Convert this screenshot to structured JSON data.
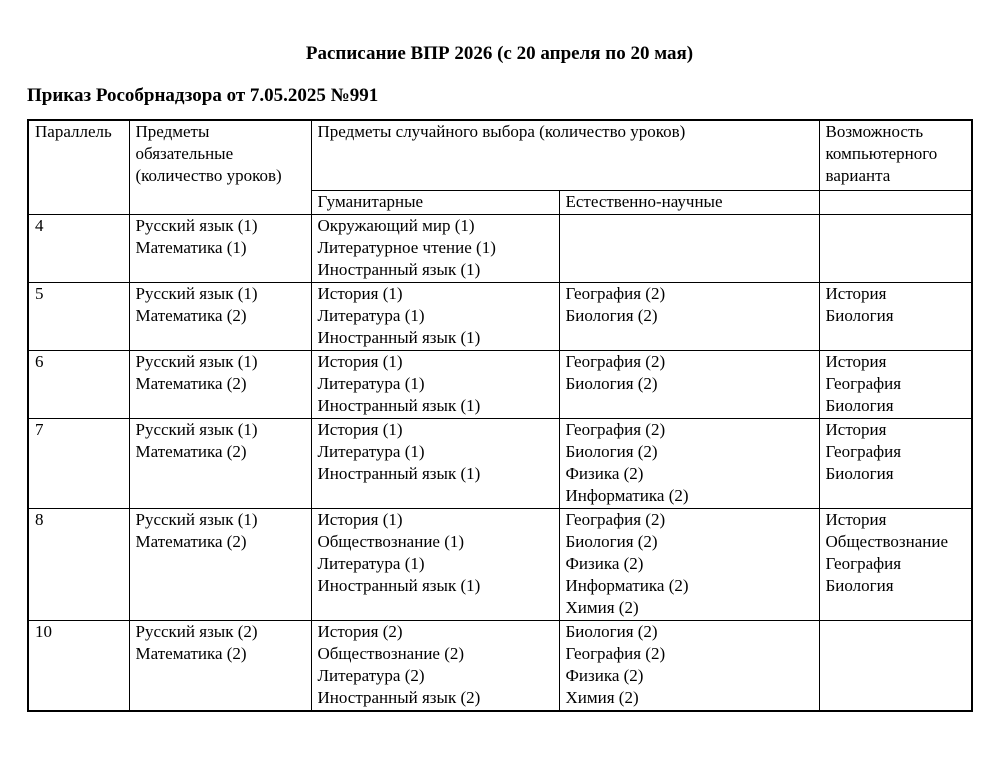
{
  "page": {
    "title": "Расписание ВПР 2026 (с 20 апреля по 20 мая)",
    "subtitle": "Приказ Рособрнадзора от 7.05.2025 №991"
  },
  "table": {
    "headers": {
      "parallel": "Параллель",
      "mandatory": "Предметы обязательные (количество уроков)",
      "random_choice": "Предметы случайного выбора (количество уроков)",
      "humanities": "Гуманитарные",
      "natural_science": "Естественно-научные",
      "computer_option": "Возможность компьютерного варианта",
      "computer_option_sub": ""
    },
    "rows": [
      {
        "parallel": "4",
        "mandatory": [
          "Русский язык (1)",
          "Математика (1)"
        ],
        "humanities": [
          "Окружающий мир (1)",
          "Литературное чтение (1)",
          "Иностранный язык (1)"
        ],
        "natural_science": [],
        "computer_option": []
      },
      {
        "parallel": "5",
        "mandatory": [
          "Русский язык (1)",
          "Математика (2)"
        ],
        "humanities": [
          "История (1)",
          "Литература (1)",
          "Иностранный язык (1)"
        ],
        "natural_science": [
          "География (2)",
          "Биология (2)"
        ],
        "computer_option": [
          "История",
          "Биология"
        ]
      },
      {
        "parallel": "6",
        "mandatory": [
          "Русский язык (1)",
          "Математика (2)"
        ],
        "humanities": [
          "История (1)",
          "Литература (1)",
          "Иностранный язык (1)"
        ],
        "natural_science": [
          "География (2)",
          "Биология (2)"
        ],
        "computer_option": [
          "История",
          "География",
          "Биология"
        ]
      },
      {
        "parallel": "7",
        "mandatory": [
          "Русский язык (1)",
          "Математика (2)"
        ],
        "humanities": [
          "История (1)",
          "Литература (1)",
          "Иностранный язык (1)"
        ],
        "natural_science": [
          "География (2)",
          "Биология (2)",
          "Физика (2)",
          "Информатика (2)"
        ],
        "computer_option": [
          "История",
          "География",
          "Биология"
        ]
      },
      {
        "parallel": "8",
        "mandatory": [
          "Русский язык (1)",
          "Математика (2)"
        ],
        "humanities": [
          "История (1)",
          "Обществознание (1)",
          "Литература (1)",
          "Иностранный язык (1)"
        ],
        "natural_science": [
          "География (2)",
          "Биология (2)",
          "Физика (2)",
          "Информатика (2)",
          "Химия (2)"
        ],
        "computer_option": [
          "История",
          "Обществознание",
          "География",
          "Биология"
        ]
      },
      {
        "parallel": "10",
        "mandatory": [
          "Русский язык (2)",
          "Математика (2)"
        ],
        "humanities": [
          "История (2)",
          "Обществознание (2)",
          "Литература (2)",
          "Иностранный язык (2)"
        ],
        "natural_science": [
          "Биология (2)",
          "География (2)",
          "Физика (2)",
          "Химия (2)"
        ],
        "computer_option": []
      }
    ]
  }
}
